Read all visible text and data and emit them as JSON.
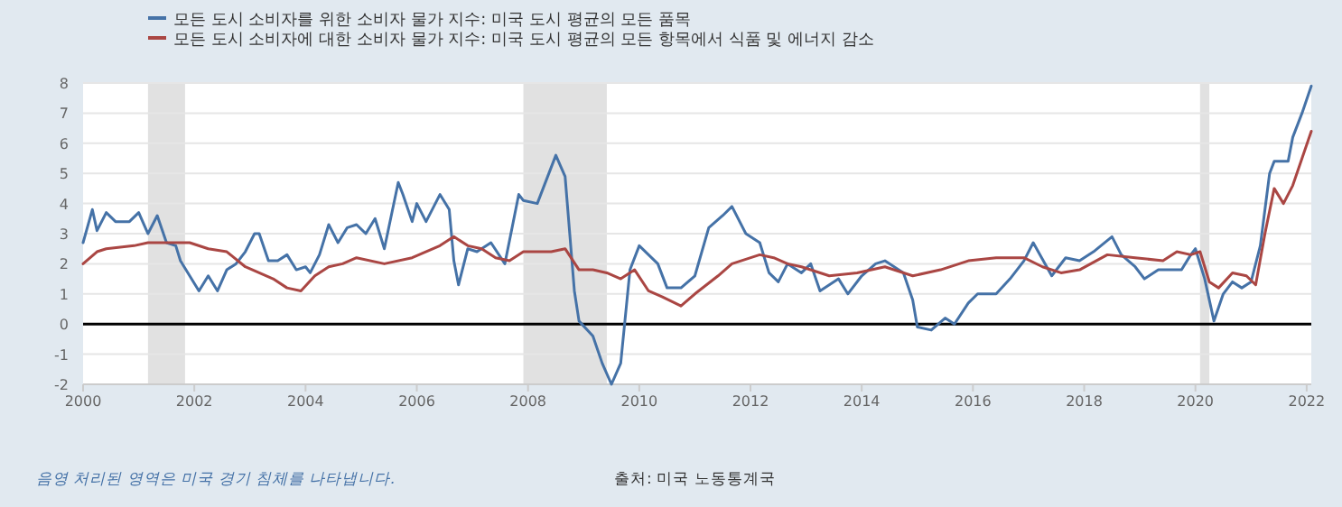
{
  "chart_data": {
    "type": "line",
    "grid": "y",
    "legend": "top left",
    "xlim": [
      "2000-01",
      "2022-02"
    ],
    "xticks": [
      "2000",
      "2002",
      "2004",
      "2006",
      "2008",
      "2010",
      "2012",
      "2014",
      "2016",
      "2018",
      "2020",
      "2022"
    ],
    "ylim": [
      -2,
      8
    ],
    "yticks": [
      -2,
      -1,
      0,
      1,
      2,
      3,
      4,
      5,
      6,
      7,
      8
    ],
    "series": [
      {
        "name": "모든 도시 소비자를 위한 소비자 물가 지수: 미국 도시 평균의 모든 품목",
        "color": "#4572a7",
        "x": [
          "2000-01",
          "2000-03",
          "2000-04",
          "2000-06",
          "2000-08",
          "2000-11",
          "2001-01",
          "2001-03",
          "2001-05",
          "2001-07",
          "2001-09",
          "2001-10",
          "2001-12",
          "2002-02",
          "2002-04",
          "2002-06",
          "2002-08",
          "2002-10",
          "2002-12",
          "2003-02",
          "2003-03",
          "2003-05",
          "2003-07",
          "2003-09",
          "2003-11",
          "2004-01",
          "2004-02",
          "2004-04",
          "2004-06",
          "2004-08",
          "2004-10",
          "2004-12",
          "2005-02",
          "2005-04",
          "2005-06",
          "2005-09",
          "2005-10",
          "2005-12",
          "2006-01",
          "2006-03",
          "2006-06",
          "2006-08",
          "2006-09",
          "2006-10",
          "2006-12",
          "2007-02",
          "2007-05",
          "2007-08",
          "2007-11",
          "2007-12",
          "2008-03",
          "2008-07",
          "2008-09",
          "2008-11",
          "2008-12",
          "2009-03",
          "2009-05",
          "2009-07",
          "2009-09",
          "2009-11",
          "2010-01",
          "2010-03",
          "2010-05",
          "2010-07",
          "2010-10",
          "2011-01",
          "2011-04",
          "2011-07",
          "2011-09",
          "2011-12",
          "2012-03",
          "2012-05",
          "2012-07",
          "2012-09",
          "2012-12",
          "2013-02",
          "2013-04",
          "2013-08",
          "2013-10",
          "2014-01",
          "2014-04",
          "2014-06",
          "2014-10",
          "2014-12",
          "2015-01",
          "2015-04",
          "2015-07",
          "2015-09",
          "2015-12",
          "2016-02",
          "2016-06",
          "2016-09",
          "2016-12",
          "2017-02",
          "2017-06",
          "2017-09",
          "2017-12",
          "2018-03",
          "2018-07",
          "2018-09",
          "2018-12",
          "2019-02",
          "2019-05",
          "2019-07",
          "2019-10",
          "2019-12",
          "2020-01",
          "2020-03",
          "2020-05",
          "2020-07",
          "2020-09",
          "2020-11",
          "2021-01",
          "2021-03",
          "2021-05",
          "2021-06",
          "2021-09",
          "2021-10",
          "2021-12",
          "2022-02"
        ],
        "values": [
          2.7,
          3.8,
          3.1,
          3.7,
          3.4,
          3.4,
          3.7,
          3.0,
          3.6,
          2.7,
          2.6,
          2.1,
          1.6,
          1.1,
          1.6,
          1.1,
          1.8,
          2.0,
          2.4,
          3.0,
          3.0,
          2.1,
          2.1,
          2.3,
          1.8,
          1.9,
          1.7,
          2.3,
          3.3,
          2.7,
          3.2,
          3.3,
          3.0,
          3.5,
          2.5,
          4.7,
          4.3,
          3.4,
          4.0,
          3.4,
          4.3,
          3.8,
          2.1,
          1.3,
          2.5,
          2.4,
          2.7,
          2.0,
          4.3,
          4.1,
          4.0,
          5.6,
          4.9,
          1.1,
          0.1,
          -0.4,
          -1.3,
          -2.0,
          -1.3,
          1.8,
          2.6,
          2.3,
          2.0,
          1.2,
          1.2,
          1.6,
          3.2,
          3.6,
          3.9,
          3.0,
          2.7,
          1.7,
          1.4,
          2.0,
          1.7,
          2.0,
          1.1,
          1.5,
          1.0,
          1.6,
          2.0,
          2.1,
          1.7,
          0.8,
          -0.1,
          -0.2,
          0.2,
          0.0,
          0.7,
          1.0,
          1.0,
          1.5,
          2.1,
          2.7,
          1.6,
          2.2,
          2.1,
          2.4,
          2.9,
          2.3,
          1.9,
          1.5,
          1.8,
          1.8,
          1.8,
          2.3,
          2.5,
          1.5,
          0.1,
          1.0,
          1.4,
          1.2,
          1.4,
          2.6,
          5.0,
          5.4,
          5.4,
          6.2,
          7.0,
          7.9
        ]
      },
      {
        "name": "모든 도시 소비자에 대한 소비자 물가 지수: 미국 도시 평균의 모든 항목에서 식품 및 에너지 감소",
        "color": "#aa4643",
        "x": [
          "2000-01",
          "2000-04",
          "2000-06",
          "2000-12",
          "2001-03",
          "2001-06",
          "2001-12",
          "2002-04",
          "2002-08",
          "2002-12",
          "2003-03",
          "2003-06",
          "2003-09",
          "2003-12",
          "2004-03",
          "2004-06",
          "2004-09",
          "2004-12",
          "2005-06",
          "2005-12",
          "2006-06",
          "2006-09",
          "2006-12",
          "2007-03",
          "2007-06",
          "2007-09",
          "2007-12",
          "2008-03",
          "2008-06",
          "2008-09",
          "2008-12",
          "2009-03",
          "2009-06",
          "2009-09",
          "2009-12",
          "2010-03",
          "2010-06",
          "2010-10",
          "2011-01",
          "2011-06",
          "2011-09",
          "2012-03",
          "2012-06",
          "2012-09",
          "2012-12",
          "2013-06",
          "2013-12",
          "2014-06",
          "2014-12",
          "2015-06",
          "2015-12",
          "2016-06",
          "2016-12",
          "2017-04",
          "2017-08",
          "2017-12",
          "2018-06",
          "2018-12",
          "2019-06",
          "2019-09",
          "2019-12",
          "2020-02",
          "2020-04",
          "2020-06",
          "2020-09",
          "2020-12",
          "2021-02",
          "2021-04",
          "2021-06",
          "2021-08",
          "2021-10",
          "2021-12",
          "2022-02"
        ],
        "values": [
          2.0,
          2.4,
          2.5,
          2.6,
          2.7,
          2.7,
          2.7,
          2.5,
          2.4,
          1.9,
          1.7,
          1.5,
          1.2,
          1.1,
          1.6,
          1.9,
          2.0,
          2.2,
          2.0,
          2.2,
          2.6,
          2.9,
          2.6,
          2.5,
          2.2,
          2.1,
          2.4,
          2.4,
          2.4,
          2.5,
          1.8,
          1.8,
          1.7,
          1.5,
          1.8,
          1.1,
          0.9,
          0.6,
          1.0,
          1.6,
          2.0,
          2.3,
          2.2,
          2.0,
          1.9,
          1.6,
          1.7,
          1.9,
          1.6,
          1.8,
          2.1,
          2.2,
          2.2,
          1.9,
          1.7,
          1.8,
          2.3,
          2.2,
          2.1,
          2.4,
          2.3,
          2.4,
          1.4,
          1.2,
          1.7,
          1.6,
          1.3,
          3.0,
          4.5,
          4.0,
          4.6,
          5.5,
          6.4
        ]
      }
    ],
    "bands": [
      {
        "axis": "x",
        "from": "2001-03",
        "to": "2001-11",
        "color": "#e1e1e1"
      },
      {
        "axis": "x",
        "from": "2007-12",
        "to": "2009-06",
        "color": "#e1e1e1"
      },
      {
        "axis": "x",
        "from": "2020-02",
        "to": "2020-04",
        "color": "#e1e1e1"
      }
    ],
    "ref_lines": [
      {
        "axis": "y",
        "value": 0,
        "color": "#000000"
      }
    ],
    "annotations": [
      "음영 처리된 영역은 미국 경기 침체를 나타냅니다.",
      "출처: 미국 노동통계국"
    ]
  }
}
